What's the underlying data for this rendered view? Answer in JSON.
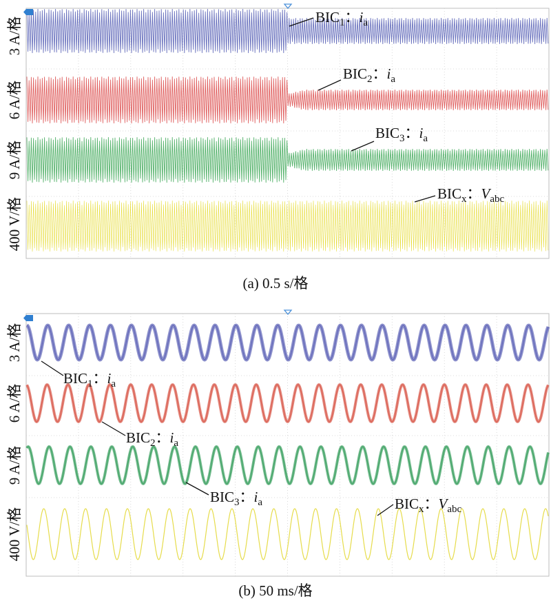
{
  "chart_data": [
    {
      "type": "line",
      "panel": "a",
      "caption": {
        "prefix": "(a) 0.5 s/",
        "unit_char": "格"
      },
      "time_per_div": "0.5 s",
      "x_divisions": 10,
      "event_at_div": 5,
      "grid": true,
      "series": [
        {
          "name": "BIC1: ia",
          "color": "#3a44a8",
          "scale": "3 A/格",
          "label": {
            "base": "BIC",
            "sub": "1",
            "sep": "：",
            "var": "i",
            "var_sub": "a"
          },
          "amplitude_div_before": 1.3,
          "amplitude_div_after": 0.8,
          "frequency_hz": 50
        },
        {
          "name": "BIC2: ia",
          "color": "#d62e2e",
          "scale": "6 A/格",
          "label": {
            "base": "BIC",
            "sub": "2",
            "sep": "：",
            "var": "i",
            "var_sub": "a"
          },
          "amplitude_div_before": 1.4,
          "amplitude_div_after": 0.6,
          "frequency_hz": 50
        },
        {
          "name": "BIC3: ia",
          "color": "#1f9a3c",
          "scale": "9 A/格",
          "label": {
            "base": "BIC",
            "sub": "3",
            "sep": "：",
            "var": "i",
            "var_sub": "a"
          },
          "amplitude_div_before": 1.4,
          "amplitude_div_after": 0.65,
          "frequency_hz": 50
        },
        {
          "name": "BICx: Vabc",
          "color": "#e3d820",
          "scale": "400 V/格",
          "label": {
            "base": "BIC",
            "sub": "x",
            "sep": "：",
            "var": "V",
            "var_sub": "abc"
          },
          "amplitude_div_before": 1.6,
          "amplitude_div_after": 1.6,
          "frequency_hz": 50
        }
      ]
    },
    {
      "type": "line",
      "panel": "b",
      "caption": {
        "prefix": "(b) 50 ms/",
        "unit_char": "格"
      },
      "time_per_div": "50 ms",
      "x_divisions": 10,
      "grid": true,
      "series": [
        {
          "name": "BIC1: ia",
          "color": "#5a5fb5",
          "scale": "3 A/格",
          "label": {
            "base": "BIC",
            "sub": "1",
            "sep": "：",
            "var": "i",
            "var_sub": "a"
          },
          "amplitude_div": 1.1,
          "frequency_hz": 50
        },
        {
          "name": "BIC2: ia",
          "color": "#d9594a",
          "scale": "6 A/格",
          "label": {
            "base": "BIC",
            "sub": "2",
            "sep": "：",
            "var": "i",
            "var_sub": "a"
          },
          "amplitude_div": 1.2,
          "frequency_hz": 50
        },
        {
          "name": "BIC3: ia",
          "color": "#3aa060",
          "scale": "9 A/格",
          "label": {
            "base": "BIC",
            "sub": "3",
            "sep": "：",
            "var": "i",
            "var_sub": "a"
          },
          "amplitude_div": 1.2,
          "frequency_hz": 50
        },
        {
          "name": "BICx: Vabc",
          "color": "#e6dc4a",
          "scale": "400 V/格",
          "label": {
            "base": "BIC",
            "sub": "x",
            "sep": "：",
            "var": "V",
            "var_sub": "abc"
          },
          "amplitude_div": 1.6,
          "frequency_hz": 50
        }
      ]
    }
  ]
}
